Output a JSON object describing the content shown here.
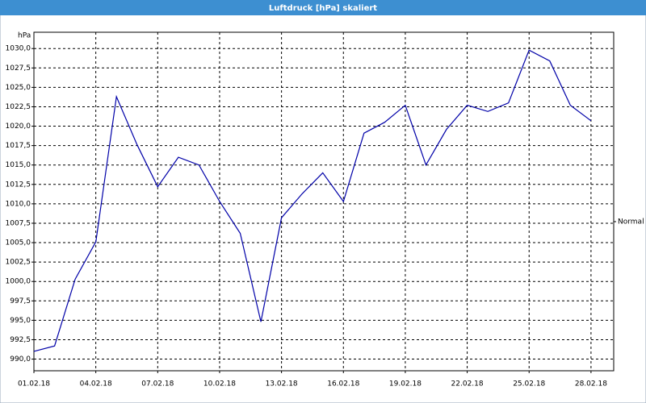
{
  "chart_data": {
    "type": "line",
    "title": "Luftdruck [hPa] skaliert",
    "ylabel": "hPa",
    "x": [
      "01.02.18",
      "02.02.18",
      "03.02.18",
      "04.02.18",
      "05.02.18",
      "06.02.18",
      "07.02.18",
      "08.02.18",
      "09.02.18",
      "10.02.18",
      "11.02.18",
      "12.02.18",
      "13.02.18",
      "14.02.18",
      "15.02.18",
      "16.02.18",
      "17.02.18",
      "18.02.18",
      "19.02.18",
      "20.02.18",
      "21.02.18",
      "22.02.18",
      "23.02.18",
      "24.02.18",
      "25.02.18",
      "26.02.18",
      "27.02.18",
      "28.02.18"
    ],
    "series": [
      {
        "name": "Normal",
        "color": "#0000a8",
        "values": [
          991.0,
          991.7,
          1000.3,
          1005.1,
          1023.8,
          1017.6,
          1012.2,
          1016.0,
          1015.0,
          1010.3,
          1006.2,
          994.8,
          1008.2,
          1011.3,
          1014.0,
          1010.3,
          1019.1,
          1020.5,
          1022.7,
          1015.0,
          1019.6,
          1022.7,
          1021.9,
          1023.0,
          1029.8,
          1028.4,
          1022.7,
          1020.7
        ]
      }
    ],
    "xlim": [
      "01.02.18",
      "28.02.18"
    ],
    "xticks": [
      "01.02.18",
      "04.02.18",
      "07.02.18",
      "10.02.18",
      "13.02.18",
      "16.02.18",
      "19.02.18",
      "22.02.18",
      "25.02.18",
      "28.02.18"
    ],
    "ylim": [
      988.5,
      1032.1
    ],
    "yticks": [
      {
        "value": 990,
        "label": "990,0"
      },
      {
        "value": 992.5,
        "label": "992,5"
      },
      {
        "value": 995,
        "label": "995,0"
      },
      {
        "value": 997.5,
        "label": "997,5"
      },
      {
        "value": 1000,
        "label": "1000,0"
      },
      {
        "value": 1002.5,
        "label": "1002,5"
      },
      {
        "value": 1005,
        "label": "1005,0"
      },
      {
        "value": 1007.5,
        "label": "1007,5"
      },
      {
        "value": 1010,
        "label": "1010,0"
      },
      {
        "value": 1012.5,
        "label": "1012,5"
      },
      {
        "value": 1015,
        "label": "1015,0"
      },
      {
        "value": 1017.5,
        "label": "1017,5"
      },
      {
        "value": 1020,
        "label": "1020,0"
      },
      {
        "value": 1022.5,
        "label": "1022,5"
      },
      {
        "value": 1025,
        "label": "1025,0"
      },
      {
        "value": 1027.5,
        "label": "1027,5"
      },
      {
        "value": 1030,
        "label": "1030,0"
      }
    ],
    "grid": true,
    "legend": "right"
  }
}
